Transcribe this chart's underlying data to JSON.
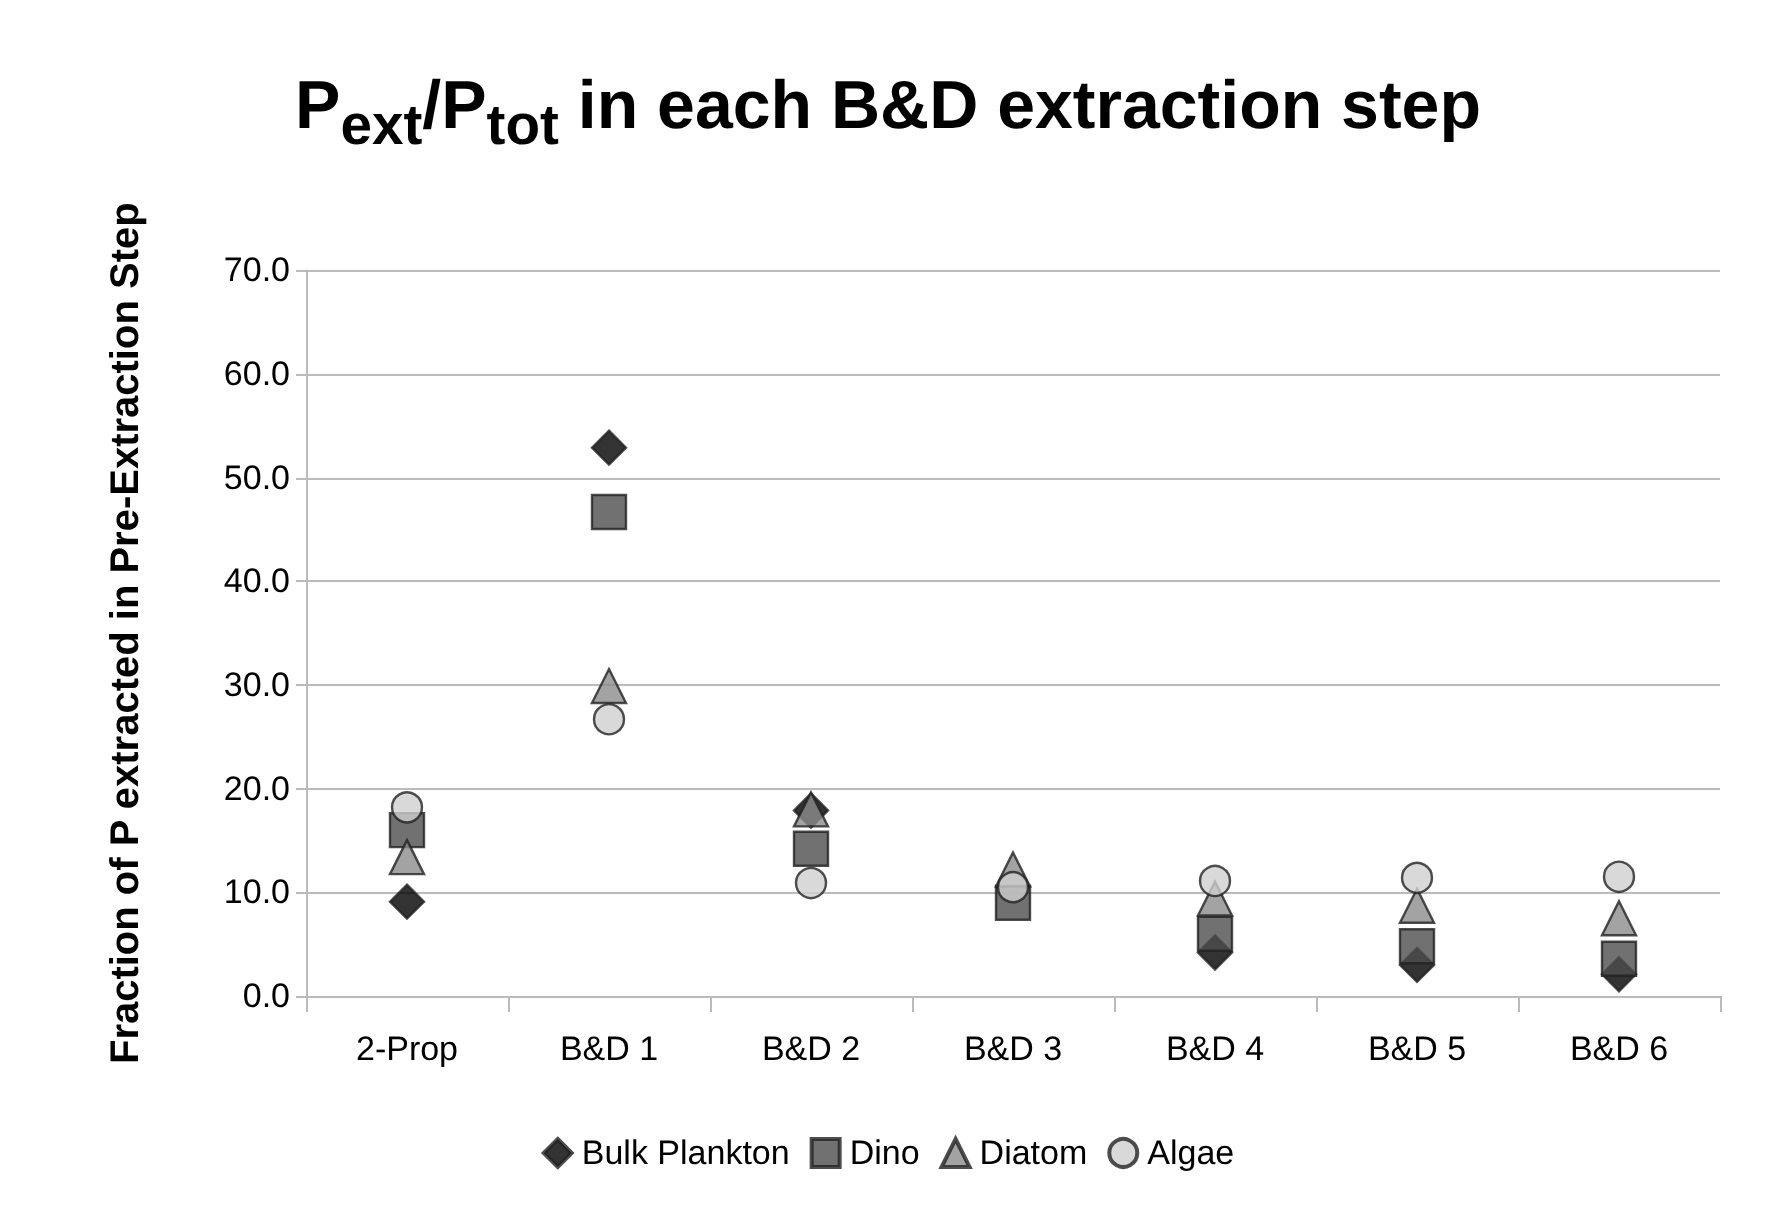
{
  "chart_data": {
    "type": "scatter",
    "title": "P$_{ext}$/P$_{tot}$ in each B&D extraction step",
    "ylabel": "Fraction of P extracted in Pre-Extraction Step",
    "categories": [
      "2-Prop",
      "B&D 1",
      "B&D 2",
      "B&D 3",
      "B&D 4",
      "B&D 5",
      "B&D 6"
    ],
    "series": [
      {
        "name": "Bulk Plankton",
        "color": "#000000",
        "marker": "diamond",
        "values": [
          9.1,
          52.9,
          17.9,
          null,
          4.2,
          3.0,
          2.1
        ]
      },
      {
        "name": "Dino",
        "color": "#4d4d4d",
        "marker": "square",
        "values": [
          16.0,
          46.7,
          14.2,
          9.0,
          6.0,
          4.8,
          3.6
        ]
      },
      {
        "name": "Diatom",
        "color": "#8c8c8c",
        "marker": "triangle",
        "values": [
          13.4,
          29.9,
          18.0,
          12.2,
          9.4,
          8.7,
          7.5
        ]
      },
      {
        "name": "Algae",
        "color": "#d0d0d0",
        "marker": "circle",
        "values": [
          18.2,
          26.7,
          10.9,
          10.5,
          11.1,
          11.4,
          11.5
        ]
      }
    ],
    "ylim": [
      0,
      70
    ],
    "yticks": [
      {
        "value": 0,
        "label": "0.0"
      },
      {
        "value": 10,
        "label": "10.0"
      },
      {
        "value": 20,
        "label": "20.0"
      },
      {
        "value": 30,
        "label": "30.0"
      },
      {
        "value": 40,
        "label": "40.0"
      },
      {
        "value": 50,
        "label": "50.0"
      },
      {
        "value": 60,
        "label": "60.0"
      },
      {
        "value": 70,
        "label": "70.0"
      }
    ],
    "grid": "y",
    "legend": "bottom"
  }
}
